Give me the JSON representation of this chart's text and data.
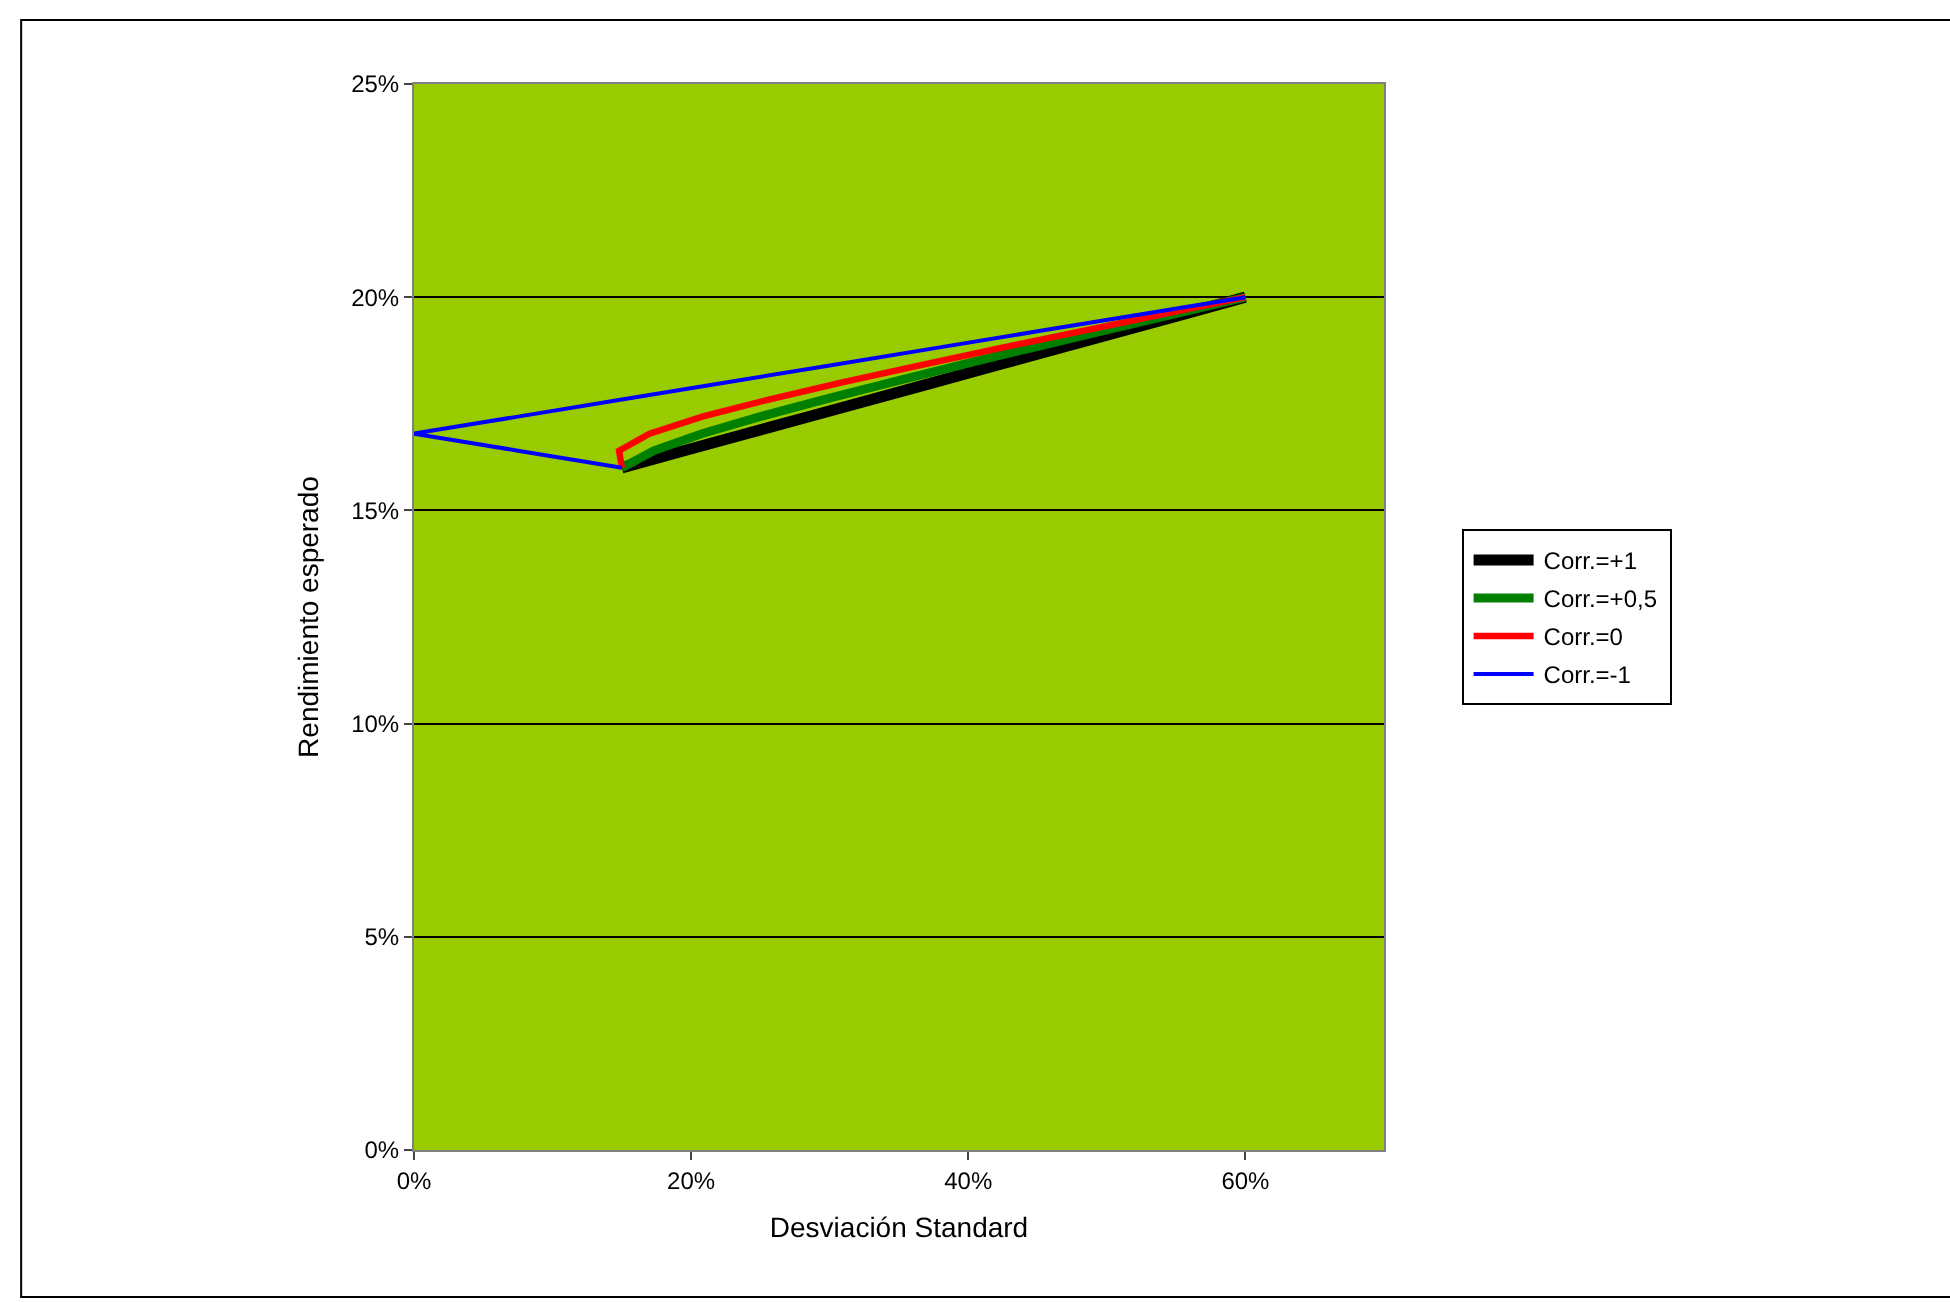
{
  "chart_data": {
    "type": "line",
    "xlabel": "Desviación Standard",
    "ylabel": "Rendimiento esperado",
    "xlim": [
      0,
      70
    ],
    "ylim": [
      0,
      25
    ],
    "xticks": [
      {
        "value": 0,
        "label": "0%"
      },
      {
        "value": 20,
        "label": "20%"
      },
      {
        "value": 40,
        "label": "40%"
      },
      {
        "value": 60,
        "label": "60%"
      }
    ],
    "yticks": [
      {
        "value": 0,
        "label": "0%"
      },
      {
        "value": 5,
        "label": "5%"
      },
      {
        "value": 10,
        "label": "10%"
      },
      {
        "value": 15,
        "label": "15%"
      },
      {
        "value": 20,
        "label": "20%"
      },
      {
        "value": 25,
        "label": "25%"
      }
    ],
    "grid": "y",
    "legend": "right",
    "marker": "none",
    "line_style": "solid",
    "series": [
      {
        "name": "Corr.=+1",
        "color": "#000000",
        "x": [
          15,
          19.5,
          24,
          28.5,
          33,
          37.5,
          42,
          46.5,
          51,
          55.5,
          60
        ],
        "values": [
          16,
          16.4,
          16.8,
          17.2,
          17.6,
          18,
          18.4,
          18.8,
          19.2,
          19.6,
          20
        ]
      },
      {
        "name": "Corr.=+0,5",
        "color": "#008000",
        "x": [
          15,
          17.3,
          20.8,
          25,
          29.6,
          34.4,
          39.3,
          44.4,
          49.6,
          54.8,
          60
        ],
        "values": [
          16,
          16.4,
          16.8,
          17.2,
          17.6,
          18,
          18.4,
          18.8,
          19.2,
          19.6,
          20
        ]
      },
      {
        "name": "Corr.=0",
        "color": "#ff0000",
        "x": [
          15,
          14.8,
          17,
          20.8,
          25.6,
          30.9,
          36.5,
          42.2,
          48.1,
          54,
          60
        ],
        "values": [
          16,
          16.4,
          16.8,
          17.2,
          17.6,
          18,
          18.4,
          18.8,
          19.2,
          19.6,
          20
        ]
      },
      {
        "name": "Corr.=-1",
        "color": "#0000ff",
        "x": [
          15,
          7.5,
          0,
          7.5,
          15,
          22.5,
          30,
          37.5,
          45,
          52.5,
          60
        ],
        "values": [
          16,
          16.4,
          16.8,
          17.2,
          17.6,
          18,
          18.4,
          18.8,
          19.2,
          19.6,
          20
        ]
      }
    ]
  }
}
